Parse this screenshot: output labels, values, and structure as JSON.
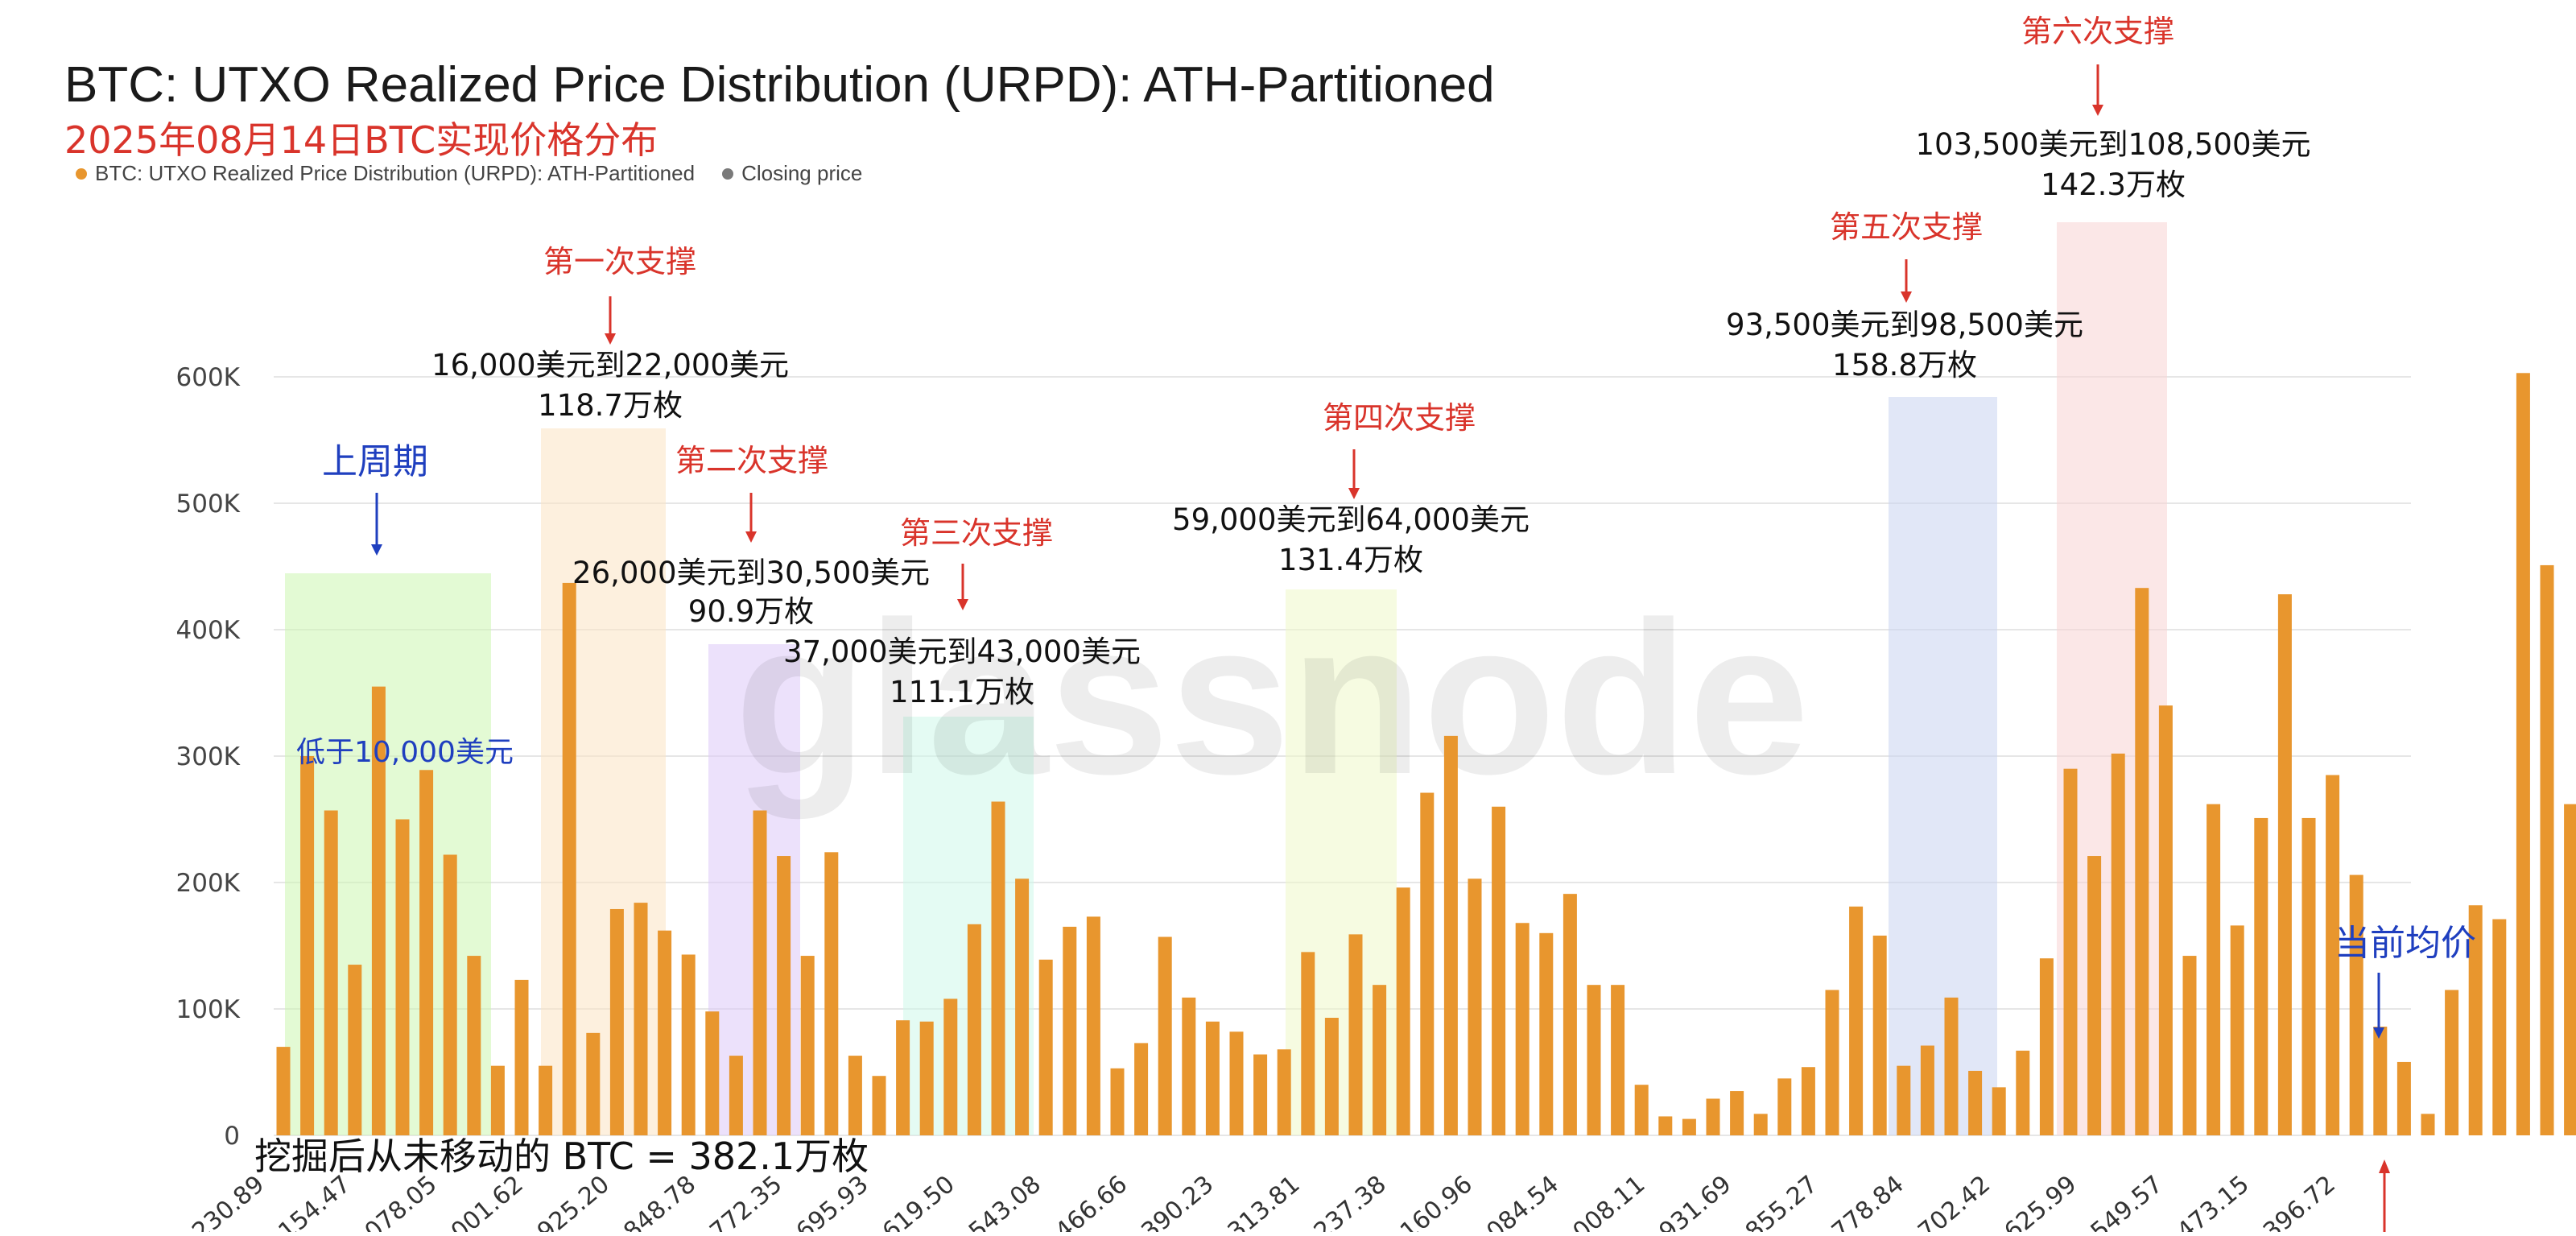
{
  "title": "BTC: UTXO Realized Price Distribution (URPD): ATH-Partitioned",
  "subtitle": "2025年08月14日BTC实现价格分布",
  "footnote": "挖掘后从未移动的 BTC = 382.1万枚",
  "watermark": "glassnode",
  "colors": {
    "bar": "#e8962e",
    "closing": "#7a7a7a",
    "red_text": "#d9342b",
    "blue_text": "#1f3fbf",
    "grid": "#e6e6e6"
  },
  "legend": [
    {
      "label": "BTC: UTXO Realized Price Distribution (URPD): ATH-Partitioned",
      "color": "#e8962e"
    },
    {
      "label": "Closing price",
      "color": "#7a7a7a"
    }
  ],
  "chart_data": {
    "type": "bar",
    "y_ticks": [
      "0",
      "100K",
      "200K",
      "300K",
      "400K",
      "500K",
      "600K"
    ],
    "ylim": [
      0,
      650000
    ],
    "grid": true,
    "legend_position": "top-left",
    "x_tick_labels": [
      "1,230.89",
      "6,154.47",
      "1,078.05",
      "6,001.62",
      "0,925.20",
      "5,848.78",
      "0,772.35",
      "5,695.93",
      "0,619.50",
      "5,543.08",
      "0,466.66",
      "5,390.23",
      "0,313.81",
      "5,237.38",
      "0,160.96",
      "5,084.54",
      "0,008.11",
      "4,931.69",
      "9,855.27",
      "4,778.84",
      "9,702.42",
      "4,625.99",
      "9,549.57",
      "4,473.15",
      "9,396.72"
    ],
    "values": [
      70000,
      300000,
      257000,
      135000,
      355000,
      250000,
      289000,
      222000,
      142000,
      55000,
      123000,
      55000,
      437000,
      81000,
      179000,
      184000,
      162000,
      143000,
      98000,
      63000,
      257000,
      221000,
      142000,
      224000,
      63000,
      47000,
      91000,
      90000,
      108000,
      167000,
      264000,
      203000,
      139000,
      165000,
      173000,
      53000,
      73000,
      157000,
      109000,
      90000,
      82000,
      64000,
      68000,
      145000,
      93000,
      159000,
      119000,
      196000,
      271000,
      316000,
      203000,
      260000,
      168000,
      160000,
      191000,
      119000,
      119000,
      40000,
      15000,
      13000,
      29000,
      35000,
      17000,
      45000,
      54000,
      115000,
      181000,
      158000,
      55000,
      71000,
      109000,
      51000,
      38000,
      67000,
      140000,
      290000,
      221000,
      302000,
      433000,
      340000,
      142000,
      262000,
      166000,
      251000,
      428000,
      251000,
      285000,
      206000,
      86000,
      58000,
      17000,
      115000,
      182000,
      171000,
      603000,
      451000,
      262000,
      110000
    ],
    "closing_price_value": 22000,
    "annotations": {
      "prev_cycle": {
        "label": "上周期",
        "note": "低于10,000美元"
      },
      "zones": [
        {
          "support": "第一次支撑",
          "range": "16,000美元到22,000美元",
          "amount": "118.7万枚",
          "color": "#fbe3c2"
        },
        {
          "support": "第二次支撑",
          "range": "26,000美元到30,500美元",
          "amount": "90.9万枚",
          "color": "#dcc9f7"
        },
        {
          "support": "第三次支撑",
          "range": "37,000美元到43,000美元",
          "amount": "111.1万枚",
          "color": "#cdf7ea"
        },
        {
          "support": "第四次支撑",
          "range": "59,000美元到64,000美元",
          "amount": "131.4万枚",
          "color": "#eef7c9"
        },
        {
          "support": "第五次支撑",
          "range": "93,500美元到98,500美元",
          "amount": "158.8万枚",
          "color": "#c9d3f1"
        },
        {
          "support": "第六次支撑",
          "range": "103,500美元到108,500美元",
          "amount": "142.3万枚",
          "color": "#f8d4d4"
        }
      ],
      "current": {
        "label": "当前均价"
      }
    }
  }
}
